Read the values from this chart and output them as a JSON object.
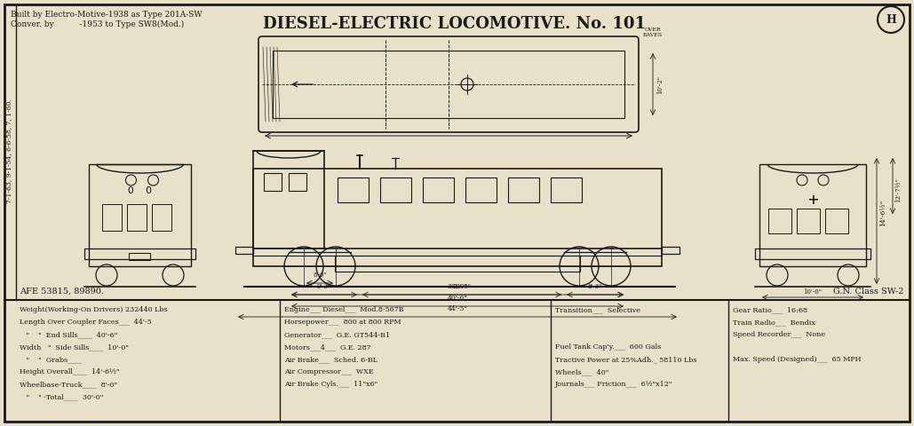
{
  "title": "DIESEL-ELECTRIC LOCOMOTIVE. No. 101",
  "subtitle_line1": "Built by Electro-Motive-1938 as Type 201A-SW",
  "subtitle_line2": "Conver. by          -1953 to Type SW8(Mod.)",
  "tag": "H",
  "afe_text": "AFE 53815, 89890.",
  "gn_class": "G.N. Class SW-2",
  "side_label": "7-1-63, 9-1-54, 6-6-58, 7, 1-60.",
  "bg_color": "#e8e0c8",
  "border_color": "#1a1a1a",
  "drawing_color": "#1a1a1a",
  "specs_col1": [
    "Weight(Working-On Drivers) 232440 Lbs",
    "Length Over Coupler Faces___  44'-5",
    "   \"    \"  End Sills____  40'-6\"",
    "Width   \"  Side Sills____  10'-0\"",
    "   \"    \"  Grabs____",
    "Height Overall____  14'-6½\"",
    "Wheelbase-Truck____  8'-0\"",
    "   \"    \" -Total____  30'-0\""
  ],
  "specs_col2": [
    "Engine___ Diesel___  Mod.8-567B",
    "Horsepower___  800 at 800 RPM",
    "Generator___  G.E. GT544-B1",
    "Motors___4___  G.E. 287",
    "Air Brake___  Sched. 6-BL",
    "Air Compressor___  WXE",
    "Air Brake Cyls.___  11\"x6\""
  ],
  "specs_col3": [
    "Transition___  Selective",
    "",
    "",
    "Fuel Tank Cap'y.___  600 Gals",
    "Tractive Power at 25%Adh._ 58110 Lbs",
    "Wheels___  40\"",
    "Journals___ Friction___  6½\"x12\""
  ],
  "specs_col4": [
    "Gear Ratio___  16:68",
    "Train Radio___  Bendix",
    "Speed Recorder___  None",
    "",
    "Max. Speed (Designed)___  65 MPH"
  ]
}
